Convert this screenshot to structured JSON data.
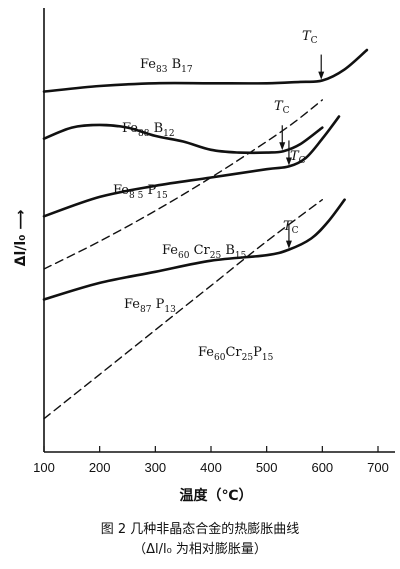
{
  "chart_data": {
    "type": "line",
    "xlabel": "温度（℃）",
    "ylabel": "Δl/l₀ ⟶",
    "xlim": [
      100,
      700
    ],
    "xticks": [
      100,
      200,
      300,
      400,
      500,
      600,
      700
    ],
    "y_units": "relative (arbitrary)",
    "tc_label": "T_C",
    "series": [
      {
        "name": "Fe83 B17",
        "style": "solid",
        "x": [
          100,
          200,
          300,
          400,
          500,
          560,
          600,
          640,
          680
        ],
        "y": [
          0.85,
          0.87,
          0.88,
          0.88,
          0.88,
          0.885,
          0.89,
          0.93,
          1.0
        ],
        "tc": 598
      },
      {
        "name": "Fe88 B12",
        "style": "solid",
        "x": [
          100,
          150,
          200,
          250,
          300,
          350,
          400,
          450,
          500,
          530,
          560,
          600
        ],
        "y": [
          0.68,
          0.72,
          0.73,
          0.72,
          0.69,
          0.67,
          0.64,
          0.63,
          0.63,
          0.635,
          0.66,
          0.72
        ],
        "tc": 528
      },
      {
        "name": "Fe85 P15",
        "style": "solid",
        "x": [
          100,
          200,
          300,
          400,
          500,
          540,
          570,
          600,
          630
        ],
        "y": [
          0.4,
          0.47,
          0.51,
          0.54,
          0.57,
          0.58,
          0.61,
          0.68,
          0.76
        ],
        "tc": 540
      },
      {
        "name": "Fe60 Cr25 B15",
        "style": "dashed",
        "x": [
          100,
          200,
          300,
          400,
          500,
          550,
          600
        ],
        "y": [
          0.21,
          0.31,
          0.42,
          0.54,
          0.67,
          0.74,
          0.82
        ]
      },
      {
        "name": "Fe87 P13",
        "style": "solid",
        "x": [
          100,
          200,
          300,
          400,
          500,
          540,
          580,
          610,
          640
        ],
        "y": [
          0.1,
          0.16,
          0.2,
          0.24,
          0.26,
          0.28,
          0.32,
          0.38,
          0.46
        ],
        "tc": 540
      },
      {
        "name": "Fe60Cr25P15",
        "style": "dashed",
        "x": [
          100,
          200,
          300,
          400,
          500,
          600
        ],
        "y": [
          -0.33,
          -0.17,
          -0.01,
          0.15,
          0.31,
          0.46
        ]
      }
    ]
  },
  "labels": {
    "s0": {
      "base": "Fe",
      "sub1": "83",
      "mid": " B",
      "sub2": "17"
    },
    "s1": {
      "base": "Fe",
      "sub1": "88",
      "mid": " B",
      "sub2": "12"
    },
    "s2": {
      "base": "Fe",
      "sub1": "8 5",
      "mid": " P",
      "sub2": "15"
    },
    "s3": {
      "base": "Fe",
      "sub1": "60",
      "mid": " Cr",
      "sub2": "25",
      "mid2": " B",
      "sub3": "15"
    },
    "s4": {
      "base": "Fe",
      "sub1": "87",
      "mid": " P",
      "sub2": "13"
    },
    "s5": {
      "base": "Fe",
      "sub1": "60",
      "mid": "Cr",
      "sub2": "25",
      "mid2": "P",
      "sub3": "15"
    },
    "tc_main": "T",
    "tc_sub": "C"
  },
  "caption": {
    "line1": "图 2   几种非晶态合金的热膨胀曲线",
    "line2": "（Δl/l₀ 为相对膨胀量）"
  }
}
